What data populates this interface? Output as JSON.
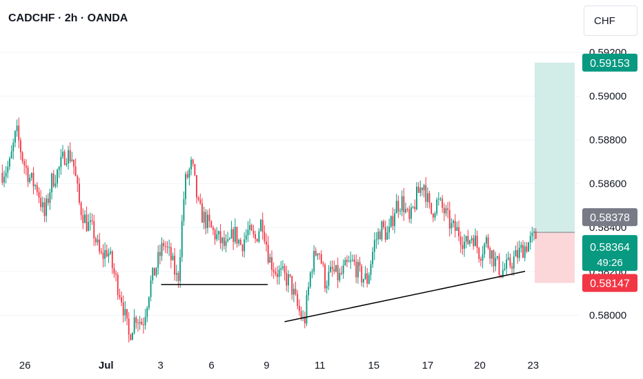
{
  "header": {
    "title": "CADCHF · 2h · OANDA",
    "currency": "CHF"
  },
  "chart_data": {
    "type": "candlestick",
    "symbol": "CADCHF",
    "interval": "2h",
    "ylim": [
      0.5785,
      0.5925
    ],
    "x_ticks": [
      "26",
      "Jul",
      "3",
      "6",
      "9",
      "11",
      "15",
      "17",
      "20",
      "23"
    ],
    "y_ticks": [
      "0.59200",
      "0.59000",
      "0.58800",
      "0.58600",
      "0.58400",
      "0.58200",
      "0.58000"
    ],
    "price_labels": {
      "target": "0.59153",
      "last_mark": "0.58378",
      "current": "0.58364",
      "countdown": "49:26",
      "stop": "0.58147"
    },
    "position": {
      "entry": 0.58378,
      "target": 0.59153,
      "stop": 0.58147
    },
    "price_path": [
      0.5865,
      0.5868,
      0.5884,
      0.587,
      0.5862,
      0.5858,
      0.5845,
      0.5861,
      0.5866,
      0.5874,
      0.5872,
      0.585,
      0.5842,
      0.5838,
      0.5826,
      0.583,
      0.5818,
      0.5808,
      0.579,
      0.58,
      0.5796,
      0.5813,
      0.5823,
      0.5833,
      0.5826,
      0.5815,
      0.586,
      0.5869,
      0.5848,
      0.5843,
      0.5838,
      0.5834,
      0.583,
      0.5838,
      0.5832,
      0.5838,
      0.5834,
      0.5844,
      0.5826,
      0.582,
      0.5818,
      0.5815,
      0.5804,
      0.5796,
      0.5822,
      0.5832,
      0.5815,
      0.582,
      0.5817,
      0.5822,
      0.5824,
      0.5818,
      0.5816,
      0.5833,
      0.584,
      0.5836,
      0.585,
      0.5852,
      0.5842,
      0.5854,
      0.5861,
      0.5846,
      0.5852,
      0.5847,
      0.584,
      0.5838,
      0.5832,
      0.5837,
      0.5828,
      0.5834,
      0.5826,
      0.582,
      0.5822,
      0.5826,
      0.583,
      0.5833,
      0.5836
    ],
    "lines": [
      {
        "name": "support-level",
        "points": [
          [
            0.278,
            0.5814
          ],
          [
            0.462,
            0.5814
          ]
        ]
      },
      {
        "name": "trendline",
        "points": [
          [
            0.491,
            0.5797
          ],
          [
            0.906,
            0.582
          ]
        ]
      }
    ]
  },
  "colors": {
    "up": "#089981",
    "down": "#f23645",
    "target_zone": "#d2ece8",
    "stop_zone": "#fbd7da",
    "last_mark": "#787b86",
    "grid": "#f0f3fa",
    "axis_text": "#131722"
  }
}
